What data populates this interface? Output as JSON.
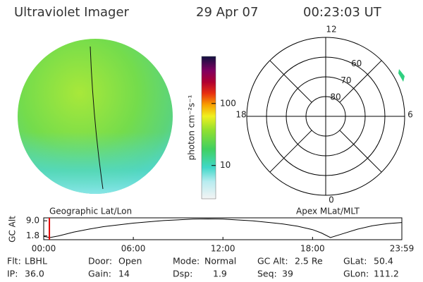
{
  "header": {
    "title": "Ultraviolet Imager",
    "date": "29 Apr 07",
    "time": "00:23:03 UT"
  },
  "colorbar": {
    "label": "photon cm⁻²s⁻¹",
    "log": true,
    "clim": [
      2.9,
      575
    ],
    "ticks": [
      10,
      100
    ]
  },
  "polar": {
    "rlim": [
      90,
      50
    ],
    "rings": [
      60,
      70,
      80
    ],
    "mlt_ticks": [
      12,
      18,
      6,
      0
    ]
  },
  "altitude": {
    "left_title": "Geographic Lat/Lon",
    "right_title": "Apex MLat/MLT",
    "ylabel": "GC Alt",
    "ylim": [
      0,
      10.4
    ],
    "yticks": [
      {
        "value": 9,
        "label": "9.0"
      },
      {
        "value": 1.8,
        "label": "1.8"
      }
    ],
    "xlim": [
      0,
      23.98
    ],
    "xticks": [
      {
        "value": 0,
        "label": "00:00"
      },
      {
        "value": 6,
        "label": "06:00"
      },
      {
        "value": 12,
        "label": "12:00"
      },
      {
        "value": 18,
        "label": "18:00"
      },
      {
        "value": 23.98,
        "label": "23:59"
      }
    ],
    "x": [
      0,
      0.4,
      1,
      2,
      3,
      4,
      6,
      8,
      10,
      11,
      12,
      14,
      16,
      17,
      18,
      18.6,
      19.2,
      20,
      21,
      22,
      23,
      23.98
    ],
    "values": [
      1.6,
      1.0,
      1.8,
      3.6,
      5.0,
      6.2,
      7.9,
      9.1,
      9.8,
      9.9,
      9.8,
      9.0,
      7.5,
      6.4,
      4.8,
      3.2,
      1.0,
      2.8,
      5.0,
      6.6,
      7.6,
      8.2
    ],
    "current_time": 0.38
  },
  "info": {
    "rows": [
      [
        {
          "label": "Flt:",
          "value": "LBHL"
        },
        {
          "label": "Door:",
          "value": "Open"
        },
        {
          "label": "Mode:",
          "value": "Normal"
        },
        {
          "label": "GC Alt:",
          "value": "2.5 Re"
        },
        {
          "label": "GLat:",
          "value": "50.4"
        }
      ],
      [
        {
          "label": "IP:",
          "value": "36.0"
        },
        {
          "label": "Gain:",
          "value": "14"
        },
        {
          "label": "Dsp:",
          "value": "1.9"
        },
        {
          "label": "Seq:",
          "value": "39"
        },
        {
          "label": "GLon:",
          "value": "111.2"
        }
      ]
    ]
  }
}
